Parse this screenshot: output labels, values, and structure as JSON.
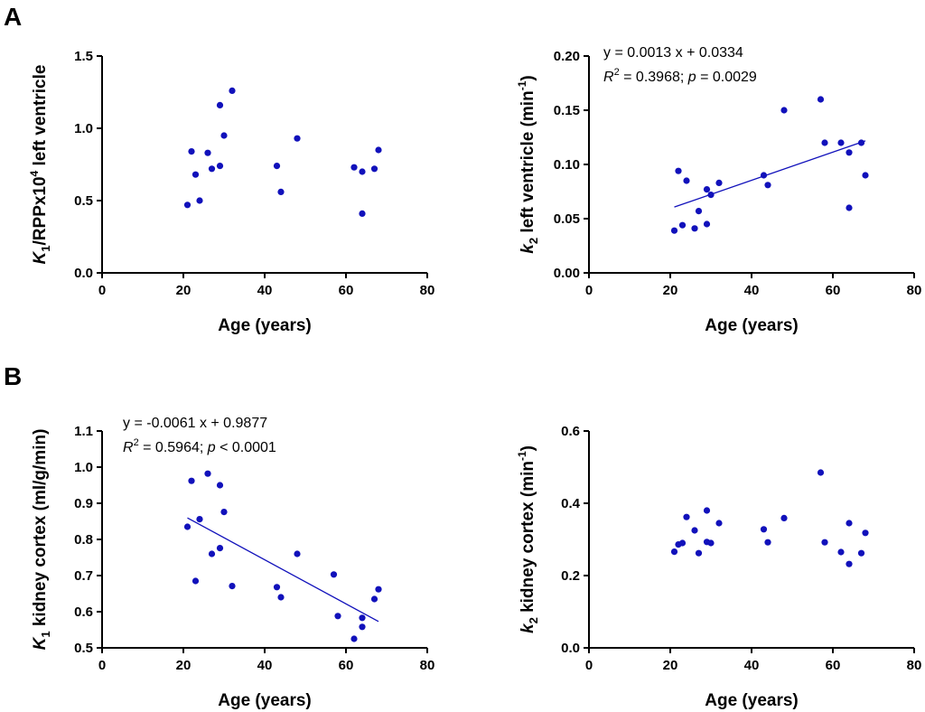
{
  "panel_letters": [
    "A",
    "B"
  ],
  "chart_data": [
    {
      "type": "scatter",
      "panel": "A",
      "title": "",
      "xlabel": "Age (years)",
      "ylabel_parts": {
        "var": "K",
        "sub": "1",
        "mid": "/RPPx10",
        "sup": "4",
        "rest": " left ventricle"
      },
      "xlim": [
        0,
        80
      ],
      "ylim": [
        0,
        1.5
      ],
      "x_ticks": [
        0,
        20,
        40,
        60,
        80
      ],
      "y_ticks": [
        0.0,
        0.5,
        1.0,
        1.5
      ],
      "x_tick_labels": [
        "0",
        "20",
        "40",
        "60",
        "80"
      ],
      "y_tick_labels": [
        "0.0",
        "0.5",
        "1.0",
        "1.5"
      ],
      "x": [
        21,
        22,
        23,
        24,
        26,
        27,
        29,
        29,
        30,
        32,
        43,
        44,
        48,
        62,
        64,
        64,
        67,
        68
      ],
      "y": [
        0.47,
        0.84,
        0.68,
        0.5,
        0.83,
        0.72,
        0.74,
        1.16,
        0.95,
        1.26,
        0.74,
        0.56,
        0.93,
        0.73,
        0.7,
        0.41,
        0.72,
        0.85
      ],
      "fit": null,
      "annotation": null
    },
    {
      "type": "scatter",
      "panel": "A",
      "title": "",
      "xlabel": "Age (years)",
      "ylabel_parts": {
        "var": "k",
        "sub": "2",
        "mid": " left ventricle (min",
        "sup": "-1",
        "rest": ")"
      },
      "xlim": [
        0,
        80
      ],
      "ylim": [
        0,
        0.2
      ],
      "x_ticks": [
        0,
        20,
        40,
        60,
        80
      ],
      "y_ticks": [
        0.0,
        0.05,
        0.1,
        0.15,
        0.2
      ],
      "x_tick_labels": [
        "0",
        "20",
        "40",
        "60",
        "80"
      ],
      "y_tick_labels": [
        "0.00",
        "0.05",
        "0.10",
        "0.15",
        "0.20"
      ],
      "x": [
        21,
        22,
        23,
        24,
        26,
        27,
        29,
        29,
        30,
        32,
        43,
        44,
        48,
        57,
        58,
        62,
        64,
        64,
        67,
        68
      ],
      "y": [
        0.039,
        0.094,
        0.044,
        0.085,
        0.041,
        0.057,
        0.045,
        0.077,
        0.072,
        0.083,
        0.09,
        0.081,
        0.15,
        0.16,
        0.12,
        0.12,
        0.111,
        0.06,
        0.12,
        0.09
      ],
      "fit": {
        "slope": 0.0013,
        "intercept": 0.0334,
        "x_range": [
          21,
          68
        ]
      },
      "annotation": {
        "equation": "y = 0.0013 x + 0.0334",
        "r2_label": "R",
        "r2_sup": "2",
        "r2_value": " = 0.3968; ",
        "p_label": "p",
        "p_value": " = 0.0029"
      }
    },
    {
      "type": "scatter",
      "panel": "B",
      "title": "",
      "xlabel": "Age (years)",
      "ylabel_parts": {
        "var": "K",
        "sub": "1",
        "mid": " kidney cortex (ml/g/min)",
        "sup": "",
        "rest": ""
      },
      "xlim": [
        0,
        80
      ],
      "ylim": [
        0.5,
        1.1
      ],
      "x_ticks": [
        0,
        20,
        40,
        60,
        80
      ],
      "y_ticks": [
        0.5,
        0.6,
        0.7,
        0.8,
        0.9,
        1.0,
        1.1
      ],
      "x_tick_labels": [
        "0",
        "20",
        "40",
        "60",
        "80"
      ],
      "y_tick_labels": [
        "0.5",
        "0.6",
        "0.7",
        "0.8",
        "0.9",
        "1.0",
        "1.1"
      ],
      "x": [
        21,
        22,
        23,
        24,
        26,
        27,
        29,
        29,
        30,
        32,
        43,
        44,
        48,
        57,
        58,
        62,
        64,
        64,
        67,
        68
      ],
      "y": [
        0.835,
        0.962,
        0.685,
        0.856,
        0.982,
        0.76,
        0.776,
        0.95,
        0.876,
        0.671,
        0.668,
        0.64,
        0.76,
        0.703,
        0.588,
        0.525,
        0.583,
        0.558,
        0.635,
        0.662
      ],
      "fit": {
        "slope": -0.0061,
        "intercept": 0.9877,
        "x_range": [
          21,
          68
        ]
      },
      "annotation": {
        "equation": "y = -0.0061 x + 0.9877",
        "r2_label": "R",
        "r2_sup": "2",
        "r2_value": " = 0.5964; ",
        "p_label": "p",
        "p_value": " < 0.0001"
      }
    },
    {
      "type": "scatter",
      "panel": "B",
      "title": "",
      "xlabel": "Age (years)",
      "ylabel_parts": {
        "var": "k",
        "sub": "2",
        "mid": " kidney cortex (min",
        "sup": "-1",
        "rest": ")"
      },
      "xlim": [
        0,
        80
      ],
      "ylim": [
        0,
        0.6
      ],
      "x_ticks": [
        0,
        20,
        40,
        60,
        80
      ],
      "y_ticks": [
        0.0,
        0.2,
        0.4,
        0.6
      ],
      "x_tick_labels": [
        "0",
        "20",
        "40",
        "60",
        "80"
      ],
      "y_tick_labels": [
        "0.0",
        "0.2",
        "0.4",
        "0.6"
      ],
      "x": [
        21,
        22,
        23,
        24,
        26,
        27,
        29,
        29,
        30,
        32,
        43,
        44,
        48,
        57,
        58,
        62,
        64,
        64,
        67,
        68
      ],
      "y": [
        0.266,
        0.286,
        0.29,
        0.362,
        0.325,
        0.262,
        0.293,
        0.38,
        0.29,
        0.345,
        0.328,
        0.292,
        0.359,
        0.485,
        0.292,
        0.265,
        0.345,
        0.232,
        0.262,
        0.318
      ],
      "fit": null,
      "annotation": null
    }
  ]
}
